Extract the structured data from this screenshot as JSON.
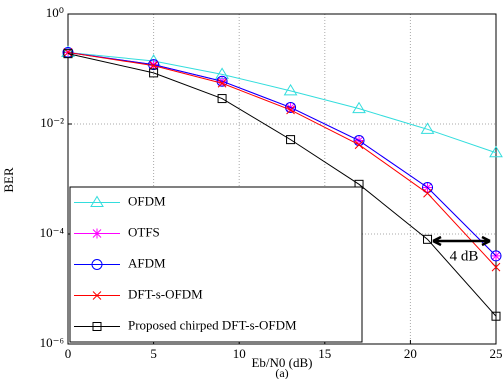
{
  "chart_data": {
    "type": "line",
    "caption": "(a)",
    "xlabel": "Eb/N0 (dB)",
    "ylabel": "BER",
    "x": [
      0,
      5,
      9,
      13,
      17,
      21,
      25
    ],
    "xlim": [
      0,
      25
    ],
    "xticks": [
      0,
      5,
      10,
      15,
      20,
      25
    ],
    "ylim": [
      1e-06,
      1
    ],
    "log_y": true,
    "grid": true,
    "legend": "lower left",
    "yticks": [
      {
        "value": 1e-06,
        "label": "10⁻⁶"
      },
      {
        "value": 0.0001,
        "label": "10⁻⁴"
      },
      {
        "value": 0.01,
        "label": "10⁻²"
      },
      {
        "value": 1,
        "label": "10⁰"
      }
    ],
    "annotation": "4 dB",
    "series": [
      {
        "name": "OFDM",
        "color": "#33dddd",
        "marker": "triangle",
        "values": [
          0.2,
          0.14,
          0.08,
          0.04,
          0.019,
          0.008,
          0.003
        ]
      },
      {
        "name": "OTFS",
        "color": "#ff00ff",
        "marker": "asterisk",
        "values": [
          0.2,
          0.12,
          0.06,
          0.02,
          0.005,
          0.0007,
          4e-05
        ]
      },
      {
        "name": "AFDM",
        "color": "#0000ff",
        "marker": "circle",
        "values": [
          0.2,
          0.12,
          0.06,
          0.02,
          0.005,
          0.0007,
          4e-05
        ]
      },
      {
        "name": "DFT-s-OFDM",
        "color": "#ff0000",
        "marker": "x",
        "values": [
          0.2,
          0.115,
          0.055,
          0.018,
          0.0042,
          0.00055,
          2.5e-05
        ]
      },
      {
        "name": "Proposed chirped DFT-s-OFDM",
        "color": "#000000",
        "marker": "square",
        "values": [
          0.19,
          0.085,
          0.029,
          0.0052,
          0.0008,
          8e-05,
          3.2e-06
        ]
      }
    ]
  }
}
